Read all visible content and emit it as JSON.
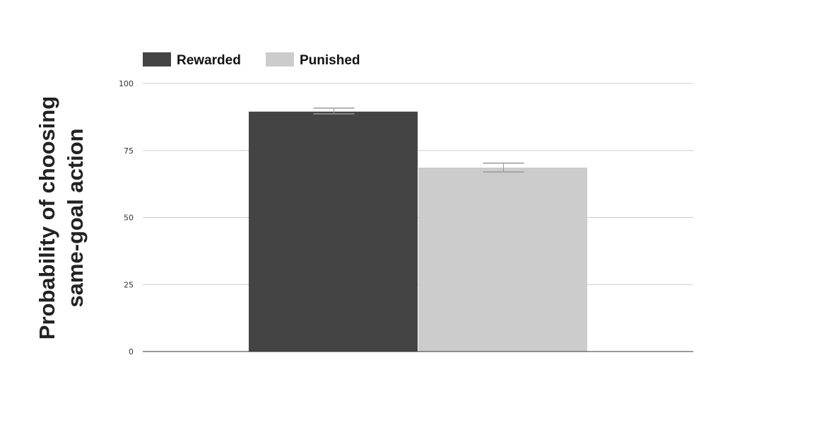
{
  "chart_data": {
    "type": "bar",
    "title": "",
    "xlabel": "",
    "ylabel_lines": [
      "Probability of choosing",
      "same-goal action"
    ],
    "ylim": [
      0,
      100
    ],
    "yticks": [
      0,
      25,
      50,
      75,
      100
    ],
    "grid": true,
    "legend_position": "top-left",
    "series": [
      {
        "name": "Rewarded",
        "value": 89.5,
        "error": [
          88.7,
          90.8
        ],
        "color": "#444444"
      },
      {
        "name": "Punished",
        "value": 68.6,
        "error": [
          67.0,
          70.3
        ],
        "color": "#cccccc"
      }
    ]
  }
}
